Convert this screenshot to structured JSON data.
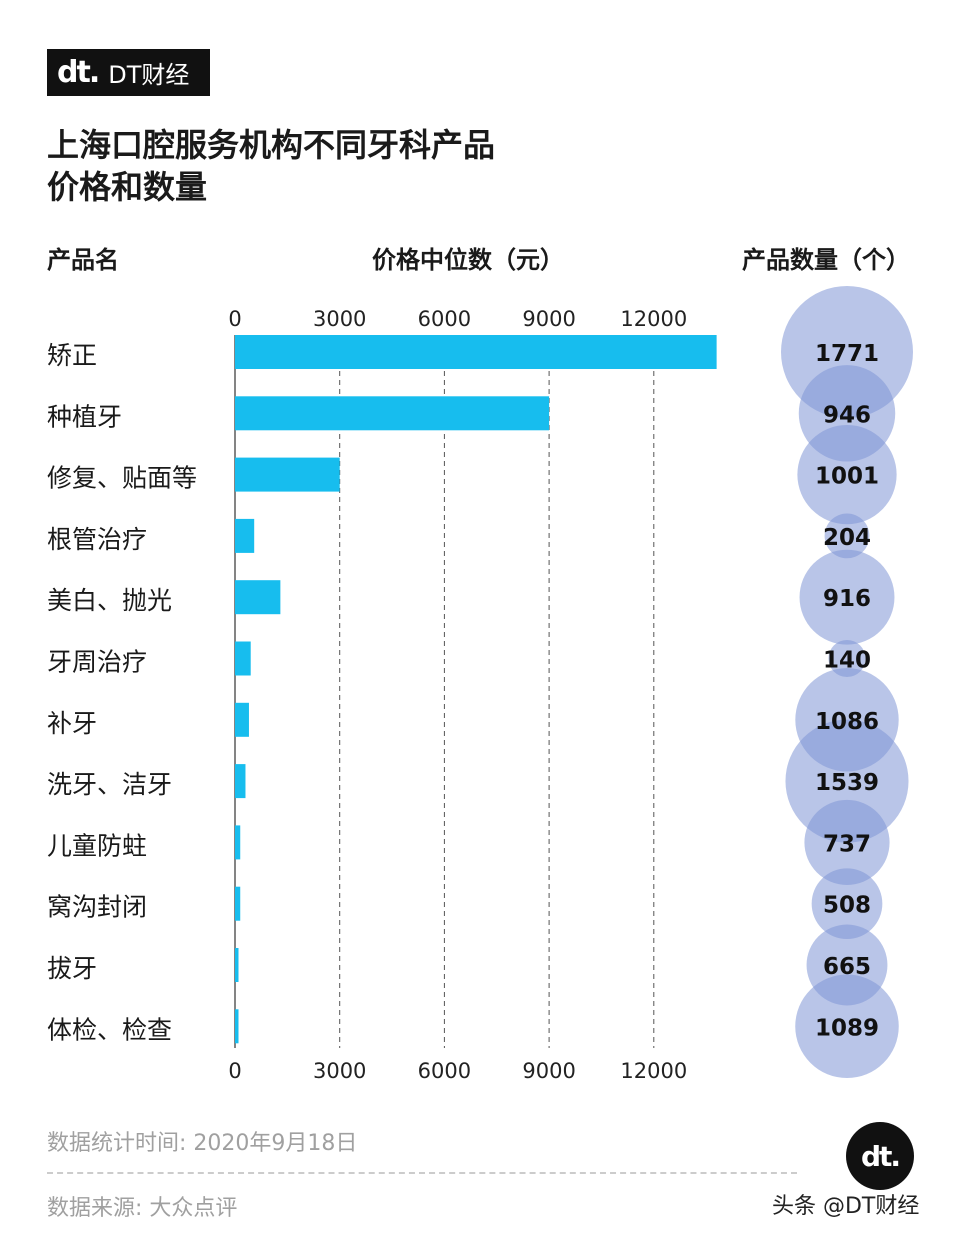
{
  "brand": {
    "logo_mark": "dt.",
    "logo_text": "DT财经"
  },
  "title_line1": "上海口腔服务机构不同牙科产品",
  "title_line2": "价格和数量",
  "columns": {
    "name": "产品名",
    "price": "价格中位数（元）",
    "count": "产品数量（个）"
  },
  "chart_data": {
    "type": "bar",
    "title": "上海口腔服务机构不同牙科产品价格和数量",
    "categories": [
      "矫正",
      "种植牙",
      "修复、贴面等",
      "根管治疗",
      "美白、抛光",
      "牙周治疗",
      "补牙",
      "洗牙、洁牙",
      "儿童防蛀",
      "窝沟封闭",
      "拔牙",
      "体检、检查"
    ],
    "series": [
      {
        "name": "价格中位数（元）",
        "values": [
          13800,
          9000,
          3000,
          550,
          1300,
          450,
          400,
          300,
          150,
          150,
          100,
          100
        ]
      },
      {
        "name": "产品数量（个）",
        "values": [
          1771,
          946,
          1001,
          204,
          916,
          140,
          1086,
          1539,
          737,
          508,
          665,
          1089
        ]
      }
    ],
    "xticks": [
      0,
      3000,
      6000,
      9000,
      12000
    ],
    "xlim": [
      0,
      14000
    ],
    "bar_color": "#17bdee",
    "bubble_color": "#7f96d6",
    "grid": "dashed"
  },
  "footer": {
    "date_note": "数据统计时间: 2020年9月18日",
    "source_note": "数据来源: 大众点评",
    "credit": "头条 @DT财经",
    "badge_mark": "dt."
  }
}
